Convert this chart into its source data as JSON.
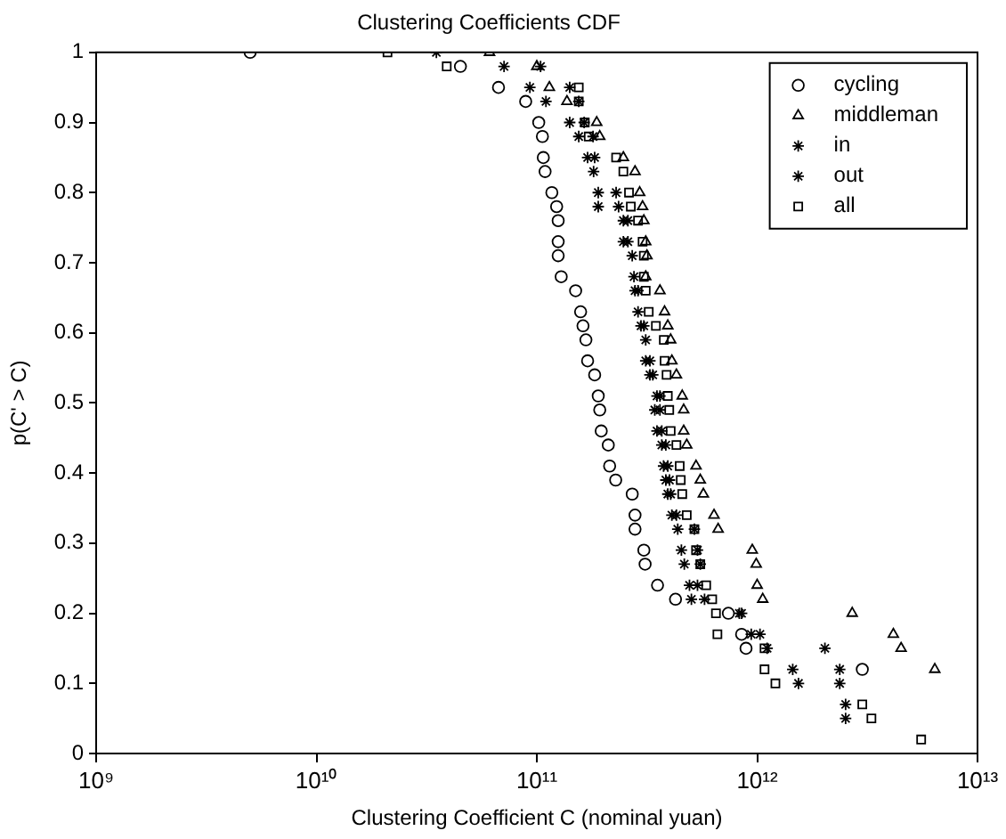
{
  "chart_data": {
    "type": "scatter",
    "title": "Clustering Coefficients CDF",
    "xlabel": "Clustering Coefficient C (nominal yuan)",
    "ylabel": "p(C' > C)",
    "log": "x",
    "grid": false,
    "legend": "top right",
    "xlim": [
      1000000000.0,
      10000000000000.0
    ],
    "xticks": [
      {
        "value": 1000000000.0,
        "label": "10⁹"
      },
      {
        "value": 10000000000.0,
        "label": "10¹⁰"
      },
      {
        "value": 100000000000.0,
        "label": "10¹¹"
      },
      {
        "value": 1000000000000.0,
        "label": "10¹²"
      },
      {
        "value": 10000000000000.0,
        "label": "10¹³"
      }
    ],
    "ylim": [
      0,
      1
    ],
    "yticks": [
      0,
      0.1,
      0.2,
      0.3,
      0.4,
      0.5,
      0.6,
      0.7,
      0.8,
      0.9,
      1
    ],
    "series": [
      {
        "name": "cycling",
        "color": "#000000",
        "marker": "circle",
        "x": [
          5000000000.0,
          45000000000.0,
          67000000000.0,
          89000000000.0,
          102000000000.0,
          106000000000.0,
          107000000000.0,
          109000000000.0,
          117000000000.0,
          123000000000.0,
          125000000000.0,
          125000000000.0,
          125000000000.0,
          129000000000.0,
          150000000000.0,
          158000000000.0,
          162000000000.0,
          167000000000.0,
          170000000000.0,
          183000000000.0,
          190000000000.0,
          193000000000.0,
          196000000000.0,
          211000000000.0,
          214000000000.0,
          228000000000.0,
          271000000000.0,
          279000000000.0,
          279000000000.0,
          306000000000.0,
          310000000000.0,
          353000000000.0,
          426000000000.0,
          740000000000.0,
          850000000000.0,
          890000000000.0,
          3000000000000.0
        ],
        "values": [
          1,
          0.98,
          0.95,
          0.93,
          0.9,
          0.88,
          0.85,
          0.83,
          0.8,
          0.78,
          0.76,
          0.73,
          0.71,
          0.68,
          0.66,
          0.63,
          0.61,
          0.59,
          0.56,
          0.54,
          0.51,
          0.49,
          0.46,
          0.44,
          0.41,
          0.39,
          0.37,
          0.34,
          0.32,
          0.29,
          0.27,
          0.24,
          0.22,
          0.2,
          0.17,
          0.15,
          0.12
        ]
      },
      {
        "name": "middleman",
        "color": "#000000",
        "marker": "triangle",
        "x": [
          61000000000.0,
          100000000000.0,
          114000000000.0,
          137000000000.0,
          187000000000.0,
          193000000000.0,
          247000000000.0,
          279000000000.0,
          293000000000.0,
          302000000000.0,
          306000000000.0,
          312000000000.0,
          316000000000.0,
          312000000000.0,
          362000000000.0,
          380000000000.0,
          393000000000.0,
          405000000000.0,
          410000000000.0,
          430000000000.0,
          457000000000.0,
          464000000000.0,
          464000000000.0,
          479000000000.0,
          528000000000.0,
          552000000000.0,
          570000000000.0,
          637000000000.0,
          665000000000.0,
          950000000000.0,
          990000000000.0,
          1000000000000.0,
          1060000000000.0,
          2700000000000.0,
          4150000000000.0,
          4500000000000.0,
          6400000000000.0
        ],
        "values": [
          1,
          0.98,
          0.95,
          0.93,
          0.9,
          0.88,
          0.85,
          0.83,
          0.8,
          0.78,
          0.76,
          0.73,
          0.71,
          0.68,
          0.66,
          0.63,
          0.61,
          0.59,
          0.56,
          0.54,
          0.51,
          0.49,
          0.46,
          0.44,
          0.41,
          0.39,
          0.37,
          0.34,
          0.32,
          0.29,
          0.27,
          0.24,
          0.22,
          0.2,
          0.17,
          0.15,
          0.12
        ]
      },
      {
        "name": "in",
        "color": "#000000",
        "marker": "cross",
        "x": [
          35000000000.0,
          71000000000.0,
          93000000000.0,
          110000000000.0,
          141000000000.0,
          155000000000.0,
          170000000000.0,
          181000000000.0,
          190000000000.0,
          190000000000.0,
          247000000000.0,
          247000000000.0,
          271000000000.0,
          276000000000.0,
          279000000000.0,
          288000000000.0,
          297000000000.0,
          312000000000.0,
          312000000000.0,
          326000000000.0,
          351000000000.0,
          343000000000.0,
          351000000000.0,
          369000000000.0,
          376000000000.0,
          385000000000.0,
          393000000000.0,
          410000000000.0,
          436000000000.0,
          453000000000.0,
          467000000000.0,
          493000000000.0,
          503000000000.0,
          830000000000.0,
          940000000000.0,
          1110000000000.0,
          1450000000000.0,
          1540000000000.0
        ],
        "values": [
          1,
          0.98,
          0.95,
          0.93,
          0.9,
          0.88,
          0.85,
          0.83,
          0.8,
          0.78,
          0.76,
          0.73,
          0.71,
          0.68,
          0.66,
          0.63,
          0.61,
          0.59,
          0.56,
          0.54,
          0.51,
          0.49,
          0.46,
          0.44,
          0.41,
          0.39,
          0.37,
          0.34,
          0.32,
          0.29,
          0.27,
          0.24,
          0.22,
          0.2,
          0.17,
          0.15,
          0.12,
          0.1
        ]
      },
      {
        "name": "out",
        "color": "#000000",
        "marker": "cross",
        "x": [
          104000000000.0,
          141000000000.0,
          155000000000.0,
          164000000000.0,
          180000000000.0,
          183000000000.0,
          229000000000.0,
          235000000000.0,
          259000000000.0,
          259000000000.0,
          288000000000.0,
          306000000000.0,
          326000000000.0,
          336000000000.0,
          362000000000.0,
          362000000000.0,
          369000000000.0,
          385000000000.0,
          393000000000.0,
          400000000000.0,
          405000000000.0,
          430000000000.0,
          519000000000.0,
          536000000000.0,
          552000000000.0,
          536000000000.0,
          577000000000.0,
          850000000000.0,
          1030000000000.0,
          2030000000000.0,
          2370000000000.0,
          2370000000000.0,
          2520000000000.0,
          2520000000000.0
        ],
        "values": [
          0.98,
          0.95,
          0.93,
          0.9,
          0.88,
          0.85,
          0.8,
          0.78,
          0.76,
          0.73,
          0.66,
          0.61,
          0.56,
          0.54,
          0.51,
          0.49,
          0.46,
          0.44,
          0.41,
          0.39,
          0.37,
          0.34,
          0.32,
          0.29,
          0.27,
          0.24,
          0.22,
          0.2,
          0.17,
          0.15,
          0.12,
          0.1,
          0.07,
          0.05
        ]
      },
      {
        "name": "all",
        "color": "#000000",
        "marker": "square",
        "x": [
          21000000000.0,
          39000000000.0,
          155000000000.0,
          155000000000.0,
          165000000000.0,
          172000000000.0,
          229000000000.0,
          247000000000.0,
          262000000000.0,
          267000000000.0,
          288000000000.0,
          302000000000.0,
          306000000000.0,
          306000000000.0,
          312000000000.0,
          322000000000.0,
          347000000000.0,
          377000000000.0,
          380000000000.0,
          388000000000.0,
          393000000000.0,
          399000000000.0,
          405000000000.0,
          430000000000.0,
          445000000000.0,
          450000000000.0,
          457000000000.0,
          479000000000.0,
          519000000000.0,
          528000000000.0,
          552000000000.0,
          587000000000.0,
          625000000000.0,
          650000000000.0,
          660000000000.0,
          1080000000000.0,
          1080000000000.0,
          1210000000000.0,
          3000000000000.0,
          3300000000000.0,
          5550000000000.0
        ],
        "values": [
          1,
          0.98,
          0.95,
          0.93,
          0.9,
          0.88,
          0.85,
          0.83,
          0.8,
          0.78,
          0.76,
          0.73,
          0.71,
          0.68,
          0.66,
          0.63,
          0.61,
          0.59,
          0.56,
          0.54,
          0.51,
          0.49,
          0.46,
          0.44,
          0.41,
          0.39,
          0.37,
          0.34,
          0.32,
          0.29,
          0.27,
          0.24,
          0.22,
          0.2,
          0.17,
          0.15,
          0.12,
          0.1,
          0.07,
          0.05,
          0.02
        ]
      }
    ]
  }
}
